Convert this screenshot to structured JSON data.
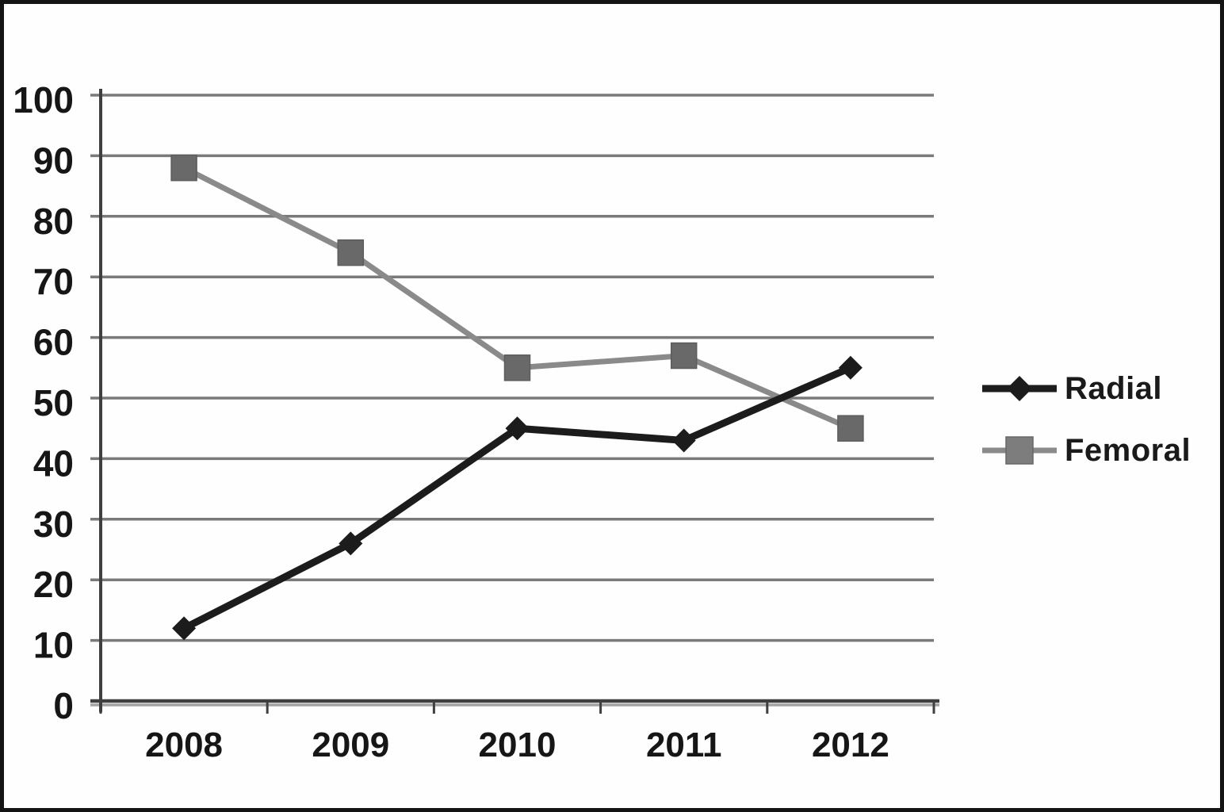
{
  "figure": {
    "background_color": "#fefefe",
    "frame_color": "#141414"
  },
  "chart_data": {
    "type": "line",
    "title": "",
    "xlabel": "",
    "ylabel": "",
    "categories": [
      "2008",
      "2009",
      "2010",
      "2011",
      "2012"
    ],
    "series": [
      {
        "name": "Radial",
        "values": [
          12,
          26,
          45,
          43,
          55
        ],
        "color": "#1c1c1c",
        "marker": "diamond",
        "marker_color": "#1c1c1c",
        "line_width": 9
      },
      {
        "name": "Femoral",
        "values": [
          88,
          74,
          55,
          57,
          45
        ],
        "color": "#8a8a8a",
        "marker": "square",
        "marker_color": "#696969",
        "line_width": 7
      }
    ],
    "ylim": [
      0,
      100
    ],
    "yticks": [
      0,
      10,
      20,
      30,
      40,
      50,
      60,
      70,
      80,
      90,
      100
    ],
    "grid": "horizontal",
    "gridline_color": "#7a7a7a",
    "axis_color": "#3f3f3f",
    "axis_echo_color": "#a3a3a3",
    "tick_label_color": "#161616",
    "legend_position": "right",
    "legend_entries": [
      "Radial",
      "Femoral"
    ]
  }
}
